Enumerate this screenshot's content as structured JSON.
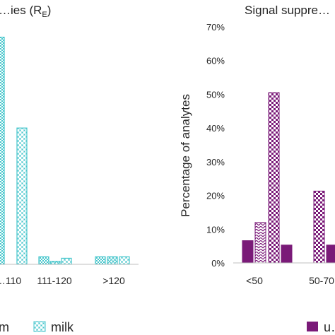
{
  "colors": {
    "teal": "#47c6cc",
    "purple": "#7a1a78",
    "axis": "#bfbfbf",
    "text": "#262626"
  },
  "chart_data": [
    {
      "type": "bar",
      "title": "…ies (R",
      "title_subscript": "E",
      "title_suffix": ")",
      "categories": [
        "…110",
        "111-120",
        ">120"
      ],
      "series": [
        {
          "name": "",
          "pattern": "dots",
          "values": [
            75,
            2.5,
            2.5
          ]
        },
        {
          "name": "",
          "pattern": "crosshatch",
          "values": [
            null,
            1,
            2.5
          ]
        },
        {
          "name": "milk",
          "pattern": "check",
          "values": [
            45,
            2,
            2.5
          ]
        }
      ],
      "legend_position": "bottom",
      "legend_partial_text": "m"
    },
    {
      "type": "bar",
      "title": "Signal suppre…",
      "ylabel": "Percentage of analytes",
      "ylim": [
        0,
        70
      ],
      "yticks": [
        "0%",
        "10%",
        "20%",
        "30%",
        "40%",
        "50%",
        "60%",
        "70%"
      ],
      "categories": [
        "<50",
        "50-70…"
      ],
      "series": [
        {
          "name": "u…",
          "pattern": "solid",
          "values": [
            6.6,
            5.3
          ]
        },
        {
          "name": "",
          "pattern": "zigzag",
          "values": [
            12,
            null
          ]
        },
        {
          "name": "",
          "pattern": "check",
          "values": [
            50.5,
            21.3
          ]
        },
        {
          "name": "",
          "pattern": "solid-edge",
          "values": [
            null,
            5.3
          ]
        }
      ],
      "legend_position": "bottom"
    }
  ]
}
